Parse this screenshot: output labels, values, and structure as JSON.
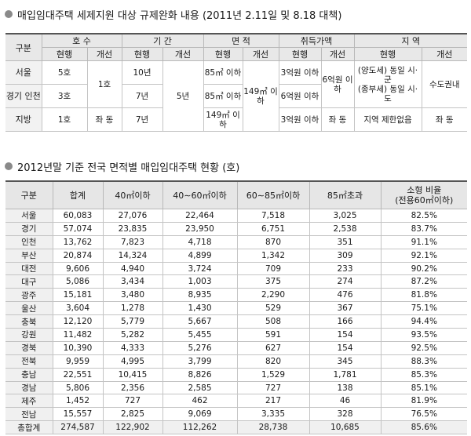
{
  "section1": {
    "title": "매입임대주택 세제지원 대상 규제완화 내용 (2011년 2.11일 및 8.18 대책)",
    "header": {
      "region": "구분",
      "units": "호 수",
      "period": "기 간",
      "area": "면 적",
      "price": "취득가액",
      "zone": "지 역",
      "current": "현행",
      "improved": "개선"
    },
    "rows": {
      "seoul": {
        "label": "서울",
        "units": "5호",
        "period": "10년",
        "area": "85㎡ 이하",
        "price": "3억원 이하",
        "zone": "(양도세) 동일 시·군"
      },
      "gyeonggi": {
        "label": "경기 인천",
        "units": "3호",
        "period": "7년",
        "area": "85㎡ 이하",
        "price": "6억원 이하",
        "zone": "(종부세) 동일 시·도"
      },
      "local": {
        "label": "지방",
        "units": "1호",
        "period": "7년",
        "area": "149㎡ 이하",
        "price": "3억원 이하",
        "zone": "지역 제한없음"
      }
    },
    "improved": {
      "units_metro": "1호",
      "units_local": "좌 동",
      "period": "5년",
      "area": "149㎡ 이하",
      "price_metro": "6억원 이하",
      "price_local": "좌 동",
      "zone_metro": "수도권내",
      "zone_local": "좌 동"
    }
  },
  "section2": {
    "title": "2012년말 기준 전국 면적별 매입임대주택 현황 (호)",
    "columns": [
      "구분",
      "합계",
      "40㎡이하",
      "40∼60㎡이하",
      "60∼85㎡이하",
      "85㎡초과",
      "소형 비율\n(전용60㎡이하)"
    ],
    "rows": [
      [
        "서울",
        "60,083",
        "27,076",
        "22,464",
        "7,518",
        "3,025",
        "82.5%"
      ],
      [
        "경기",
        "57,074",
        "23,835",
        "23,950",
        "6,751",
        "2,538",
        "83.7%"
      ],
      [
        "인천",
        "13,762",
        "7,823",
        "4,718",
        "870",
        "351",
        "91.1%"
      ],
      [
        "부산",
        "20,874",
        "14,324",
        "4,899",
        "1,342",
        "309",
        "92.1%"
      ],
      [
        "대전",
        "9,606",
        "4,940",
        "3,724",
        "709",
        "233",
        "90.2%"
      ],
      [
        "대구",
        "5,086",
        "3,434",
        "1,003",
        "375",
        "274",
        "87.2%"
      ],
      [
        "광주",
        "15,181",
        "3,480",
        "8,935",
        "2,290",
        "476",
        "81.8%"
      ],
      [
        "울산",
        "3,604",
        "1,278",
        "1,430",
        "529",
        "367",
        "75.1%"
      ],
      [
        "충북",
        "12,120",
        "5,779",
        "5,667",
        "508",
        "166",
        "94.4%"
      ],
      [
        "강원",
        "11,482",
        "5,282",
        "5,455",
        "591",
        "154",
        "93.5%"
      ],
      [
        "경북",
        "10,390",
        "4,333",
        "5,276",
        "627",
        "154",
        "92.5%"
      ],
      [
        "전북",
        "9,959",
        "4,995",
        "3,799",
        "820",
        "345",
        "88.3%"
      ],
      [
        "충남",
        "22,551",
        "10,415",
        "8,826",
        "1,529",
        "1,781",
        "85.3%"
      ],
      [
        "경남",
        "5,806",
        "2,356",
        "2,585",
        "727",
        "138",
        "85.1%"
      ],
      [
        "제주",
        "1,452",
        "727",
        "462",
        "217",
        "46",
        "81.9%"
      ],
      [
        "전남",
        "15,557",
        "2,825",
        "9,069",
        "3,335",
        "328",
        "76.5%"
      ]
    ],
    "total": [
      "총합계",
      "274,587",
      "122,902",
      "112,262",
      "28,738",
      "10,685",
      "85.6%"
    ]
  }
}
